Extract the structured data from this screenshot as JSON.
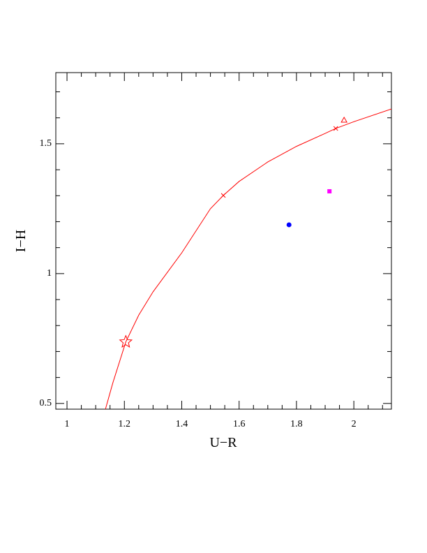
{
  "chart_data": {
    "type": "scatter",
    "xlabel": "U−R",
    "ylabel": "I−H",
    "xlim": [
      0.961,
      2.131
    ],
    "ylim": [
      0.478,
      1.774
    ],
    "xticks": [
      1,
      1.2,
      1.4,
      1.6,
      1.8,
      2
    ],
    "xticks_minor": [
      1.05,
      1.1,
      1.15,
      1.25,
      1.3,
      1.35,
      1.45,
      1.5,
      1.55,
      1.65,
      1.7,
      1.75,
      1.85,
      1.9,
      1.95,
      2.05,
      2.1
    ],
    "yticks": [
      0.5,
      1,
      1.5
    ],
    "yticks_minor": [
      0.6,
      0.7,
      0.8,
      0.9,
      1.1,
      1.2,
      1.3,
      1.4,
      1.6,
      1.7
    ],
    "series": [
      {
        "marker": "line",
        "color": "#ff0000",
        "x": [
          1.134,
          1.16,
          1.205,
          1.25,
          1.3,
          1.4,
          1.5,
          1.545,
          1.6,
          1.7,
          1.8,
          1.9,
          1.937,
          2.0,
          2.131
        ],
        "values": [
          0.478,
          0.58,
          0.737,
          0.84,
          0.93,
          1.08,
          1.25,
          1.301,
          1.355,
          1.43,
          1.49,
          1.54,
          1.559,
          1.585,
          1.634
        ]
      },
      {
        "marker": "star",
        "color": "#ff0000",
        "x": [
          1.205
        ],
        "values": [
          0.737
        ]
      },
      {
        "marker": "cross",
        "color": "#ff0000",
        "x": [
          1.545,
          1.937
        ],
        "values": [
          1.301,
          1.559
        ]
      },
      {
        "marker": "triangle",
        "color": "#ff0000",
        "x": [
          1.966
        ],
        "values": [
          1.591
        ]
      },
      {
        "marker": "circle",
        "color": "#0000ff",
        "x": [
          1.774
        ],
        "values": [
          1.188
        ]
      },
      {
        "marker": "square",
        "color": "#ff00ff",
        "x": [
          1.915
        ],
        "values": [
          1.317
        ]
      }
    ]
  }
}
